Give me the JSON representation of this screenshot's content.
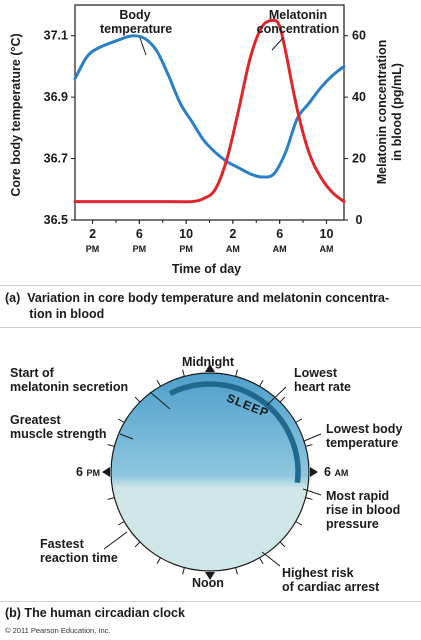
{
  "chart_data": {
    "type": "line",
    "xlabel": "Time of day",
    "ylabel": "Core body temperature (°C)",
    "ylabel_right": "Melatonin concentration in blood (pg/mL)",
    "x_ticks": [
      {
        "h": "2",
        "s": "PM"
      },
      {
        "h": "6",
        "s": "PM"
      },
      {
        "h": "10",
        "s": "PM"
      },
      {
        "h": "2",
        "s": "AM"
      },
      {
        "h": "6",
        "s": "AM"
      },
      {
        "h": "10",
        "s": "AM"
      }
    ],
    "ylim": [
      36.5,
      37.2
    ],
    "yticks": [
      "36.5",
      "36.7",
      "36.9",
      "37.1"
    ],
    "ylim_right": [
      0,
      70
    ],
    "yticks_right": [
      "0",
      "20",
      "40",
      "60"
    ],
    "series": [
      {
        "name": "Body temperature",
        "axis": "left",
        "color": "#2b7fc4",
        "points": [
          [
            0,
            36.96
          ],
          [
            1,
            37.03
          ],
          [
            2,
            37.06
          ],
          [
            4,
            37.09
          ],
          [
            5,
            37.1
          ],
          [
            6,
            37.09
          ],
          [
            7,
            37.05
          ],
          [
            8,
            36.97
          ],
          [
            9,
            36.88
          ],
          [
            10,
            36.82
          ],
          [
            11,
            36.76
          ],
          [
            12,
            36.72
          ],
          [
            13,
            36.69
          ],
          [
            14,
            36.67
          ],
          [
            15,
            36.65
          ],
          [
            16,
            36.64
          ],
          [
            17,
            36.65
          ],
          [
            18,
            36.72
          ],
          [
            19,
            36.83
          ],
          [
            20,
            36.88
          ],
          [
            21,
            36.93
          ],
          [
            22,
            36.97
          ],
          [
            23,
            37.0
          ]
        ]
      },
      {
        "name": "Melatonin concentration",
        "axis": "right",
        "color": "#e0262b",
        "points": [
          [
            0,
            6
          ],
          [
            8,
            6
          ],
          [
            10,
            6
          ],
          [
            11,
            7
          ],
          [
            12,
            10
          ],
          [
            13,
            20
          ],
          [
            14,
            36
          ],
          [
            15,
            53
          ],
          [
            16,
            63
          ],
          [
            17,
            65
          ],
          [
            17.5,
            63
          ],
          [
            18,
            55
          ],
          [
            19,
            36
          ],
          [
            20,
            22
          ],
          [
            21,
            14
          ],
          [
            22,
            9
          ],
          [
            23,
            6
          ]
        ]
      }
    ],
    "annotations": [
      "Body temperature",
      "Melatonin concentration"
    ]
  },
  "labels": {
    "body_temperature": "Body\ntemperature",
    "melatonin": "Melatonin\nconcentration"
  },
  "caption_a": "(a)  Variation in core body temperature and melatonin concentra-\n       tion in blood",
  "caption_b": "(b)  The human circadian clock",
  "clock": {
    "sleep": "SLEEP",
    "midnight": "Midnight",
    "noon": "Noon",
    "six_pm_num": "6",
    "six_pm_unit": "PM",
    "six_am_num": "6",
    "six_am_unit": "AM",
    "melatonin_secretion": "Start of\nmelatonin secretion",
    "muscle_strength": "Greatest\nmuscle strength",
    "reaction_time": "Fastest\nreaction time",
    "heart_rate": "Lowest\nheart rate",
    "body_temp": "Lowest body\ntemperature",
    "blood_pressure": "Most rapid\nrise in blood\npressure",
    "cardiac_arrest": "Highest risk\nof cardiac arrest",
    "fill_top": "#5aa8d2",
    "fill_bottom": "#cfe6e6",
    "arc_color": "#1f6a8c"
  },
  "copyright": "© 2011 Pearson Education, Inc."
}
